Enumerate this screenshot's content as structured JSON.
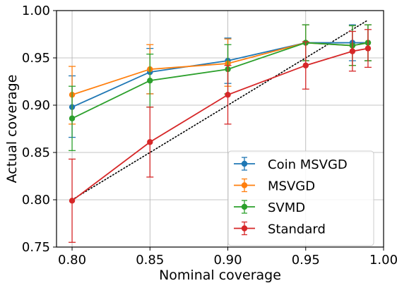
{
  "chart_data": {
    "type": "line",
    "xlabel": "Nominal coverage",
    "ylabel": "Actual coverage",
    "xlim": [
      0.79,
      1.0
    ],
    "ylim": [
      0.75,
      1.0
    ],
    "xticks": [
      "0.80",
      "0.85",
      "0.90",
      "0.95",
      "1.00"
    ],
    "yticks": [
      "0.75",
      "0.80",
      "0.85",
      "0.90",
      "0.95",
      "1.00"
    ],
    "xtick_values": [
      0.8,
      0.85,
      0.9,
      0.95,
      1.0
    ],
    "ytick_values": [
      0.75,
      0.8,
      0.85,
      0.9,
      0.95,
      1.0
    ],
    "grid": true,
    "legend_position": "lower-right",
    "reference_line": {
      "style": "dotted",
      "color": "#000000",
      "from": [
        0.8,
        0.8
      ],
      "to": [
        0.99,
        0.99
      ]
    },
    "x": [
      0.8,
      0.85,
      0.9,
      0.95,
      0.98,
      0.99
    ],
    "series": [
      {
        "name": "Coin MSVGD",
        "color": "#1f77b4",
        "values": [
          0.898,
          0.935,
          0.947,
          0.966,
          0.966,
          0.966
        ],
        "err_low": [
          0.866,
          0.912,
          0.923,
          0.947,
          0.947,
          0.947
        ],
        "err_high": [
          0.931,
          0.96,
          0.971,
          0.985,
          0.985,
          0.985
        ]
      },
      {
        "name": "MSVGD",
        "color": "#ff7f0e",
        "values": [
          0.911,
          0.938,
          0.944,
          0.966,
          0.963,
          0.966
        ],
        "err_low": [
          0.88,
          0.912,
          0.92,
          0.947,
          0.942,
          0.947
        ],
        "err_high": [
          0.941,
          0.964,
          0.97,
          0.985,
          0.984,
          0.985
        ]
      },
      {
        "name": "SVMD",
        "color": "#2ca02c",
        "values": [
          0.886,
          0.926,
          0.938,
          0.966,
          0.963,
          0.966
        ],
        "err_low": [
          0.852,
          0.898,
          0.912,
          0.947,
          0.942,
          0.947
        ],
        "err_high": [
          0.92,
          0.954,
          0.964,
          0.985,
          0.984,
          0.985
        ]
      },
      {
        "name": "Standard",
        "color": "#d62728",
        "values": [
          0.799,
          0.861,
          0.911,
          0.942,
          0.957,
          0.96
        ],
        "err_low": [
          0.755,
          0.824,
          0.88,
          0.917,
          0.936,
          0.94
        ],
        "err_high": [
          0.843,
          0.898,
          0.942,
          0.967,
          0.978,
          0.98
        ]
      }
    ]
  }
}
